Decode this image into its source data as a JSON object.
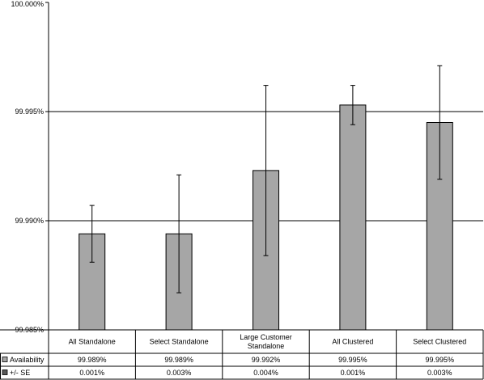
{
  "chart_data": {
    "type": "bar",
    "categories": [
      [
        "All Standalone"
      ],
      [
        "Select Standalone"
      ],
      [
        "Large Customer",
        "Standalone"
      ],
      [
        "All Clustered"
      ],
      [
        "Select Clustered"
      ]
    ],
    "series": [
      {
        "name": "Availability",
        "values": [
          99.9894,
          99.9894,
          99.9923,
          99.9953,
          99.9945
        ],
        "labels": [
          "99.989%",
          "99.989%",
          "99.992%",
          "99.995%",
          "99.995%"
        ],
        "color": "#a6a6a6"
      },
      {
        "name": "+/- SE",
        "values": [
          0.0013,
          0.0027,
          0.0039,
          0.0009,
          0.0026
        ],
        "labels": [
          "0.001%",
          "0.003%",
          "0.004%",
          "0.001%",
          "0.003%"
        ],
        "color": "#595959"
      }
    ],
    "ylim": [
      99.985,
      100.0
    ],
    "yticks": [
      {
        "value": 99.985,
        "label": "99.985%"
      },
      {
        "value": 99.99,
        "label": "99.990%"
      },
      {
        "value": 99.995,
        "label": "99.995%"
      },
      {
        "value": 100.0,
        "label": "100.000%"
      }
    ],
    "grid": true,
    "legend": "data-table",
    "title": "",
    "xlabel": "",
    "ylabel": ""
  }
}
